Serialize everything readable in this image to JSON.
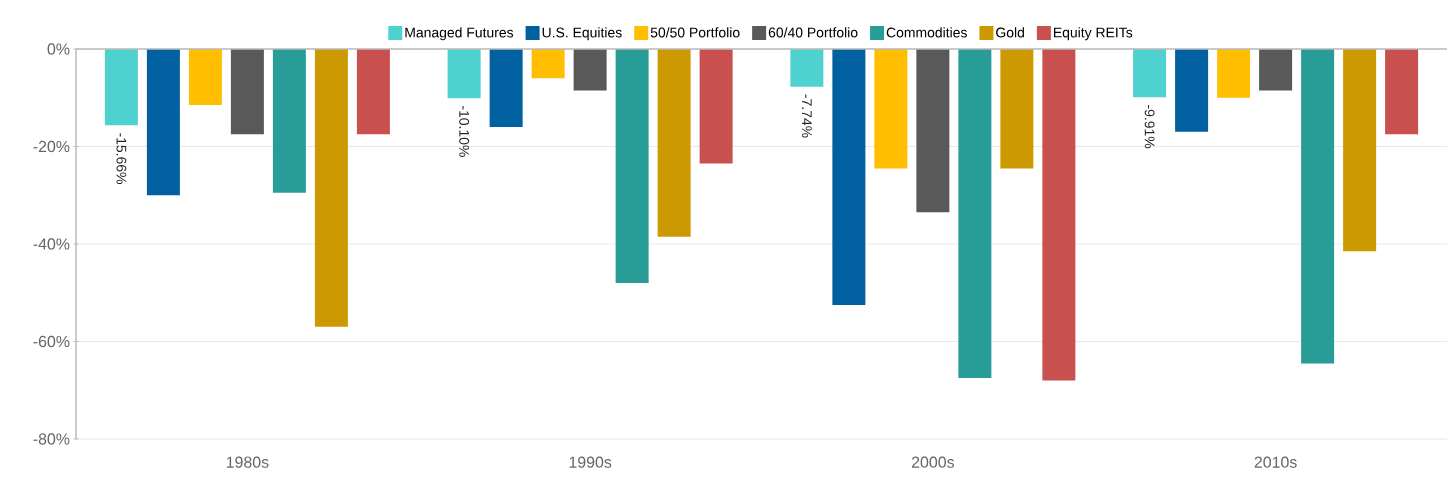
{
  "chart_data": {
    "type": "bar",
    "categories": [
      "1980s",
      "1990s",
      "2000s",
      "2010s"
    ],
    "series": [
      {
        "name": "Managed Futures",
        "color": "#4fd1cf",
        "values": [
          -15.66,
          -10.1,
          -7.74,
          -9.91
        ],
        "value_labels": [
          "-15.66%",
          "-10.10%",
          "-7.74%",
          "-9.91%"
        ]
      },
      {
        "name": "U.S. Equities",
        "color": "#0060a0",
        "values": [
          -30,
          -16,
          -52.5,
          -17
        ]
      },
      {
        "name": "50/50 Portfolio",
        "color": "#ffbf00",
        "values": [
          -11.5,
          -6,
          -24.5,
          -10
        ]
      },
      {
        "name": "60/40 Portfolio",
        "color": "#595959",
        "values": [
          -17.5,
          -8.5,
          -33.5,
          -8.5
        ]
      },
      {
        "name": "Commodities",
        "color": "#289c97",
        "values": [
          -29.5,
          -48,
          -67.5,
          -64.5
        ]
      },
      {
        "name": "Gold",
        "color": "#cc9a00",
        "values": [
          -57,
          -38.5,
          -24.5,
          -41.5
        ]
      },
      {
        "name": "Equity REITs",
        "color": "#c8504e",
        "values": [
          -17.5,
          -23.5,
          -68,
          -17.5
        ]
      }
    ],
    "ylim": [
      -80,
      0
    ],
    "yticks": [
      {
        "value": 0,
        "label": "0%"
      },
      {
        "value": -20,
        "label": "-20%"
      },
      {
        "value": -40,
        "label": "-40%"
      },
      {
        "value": -60,
        "label": "-60%"
      },
      {
        "value": -80,
        "label": "-80%"
      }
    ],
    "grid": "y",
    "legend": "top"
  }
}
